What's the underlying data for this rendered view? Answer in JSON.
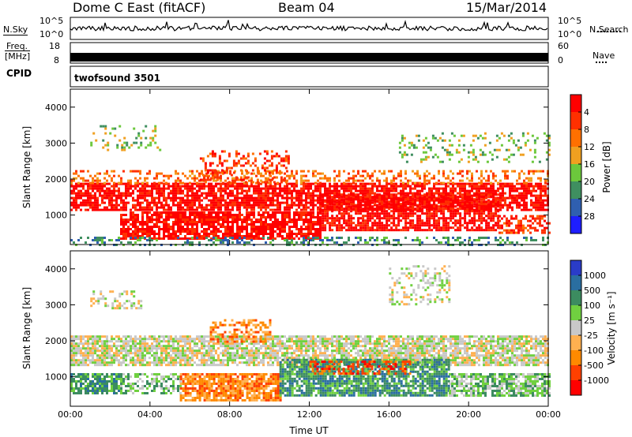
{
  "header": {
    "station": "Dome C East (fitACF)",
    "beam": "Beam 04",
    "date": "15/Mar/2014"
  },
  "strips": {
    "nsky_label": "N.Sky",
    "nsearch_label": "N.Search",
    "noise_ticks": [
      "10^5",
      "10^0"
    ],
    "freq_label_line1": "Freq.",
    "freq_label_line2": "[MHz]",
    "freq_ticks": [
      "18",
      "8"
    ],
    "nave_label": "Nave",
    "nave_ticks": [
      "60",
      "0"
    ],
    "cpid_label": "CPID",
    "cpid_value": "twofsound 3501"
  },
  "colors": {
    "power": [
      "#1e1eff",
      "#2f5fb0",
      "#3f8f60",
      "#6cc83c",
      "#f0a020",
      "#ff7000",
      "#ff3000",
      "#ff0000"
    ],
    "velocity": [
      "#ff0000",
      "#ff4000",
      "#ff8a00",
      "#ffb050",
      "#c8c8c8",
      "#70d040",
      "#3c8c60",
      "#2a6ea0",
      "#2a3cc8"
    ]
  },
  "chart_data": [
    {
      "type": "heatmap",
      "panel": "power",
      "ylabel": "Slant Range [km]",
      "yticks": [
        1000,
        2000,
        3000,
        4000
      ],
      "xticks": [
        "00:00",
        "04:00",
        "08:00",
        "12:00",
        "16:00",
        "20:00",
        "00:00"
      ],
      "ylim": [
        180,
        4500
      ],
      "colorbar": {
        "label": "Power [dB]",
        "ticks": [
          "4",
          "8",
          "12",
          "16",
          "20",
          "24",
          "28"
        ]
      },
      "bands": [
        {
          "t0": 0.0,
          "t1": 24.0,
          "r0": 1150,
          "r1": 1900,
          "level": 7,
          "density": 0.75
        },
        {
          "t0": 0.0,
          "t1": 24.0,
          "r0": 1900,
          "r1": 2250,
          "level": 5,
          "density": 0.35
        },
        {
          "t0": 2.5,
          "t1": 12.5,
          "r0": 350,
          "r1": 1100,
          "level": 7,
          "density": 0.8
        },
        {
          "t0": 12.5,
          "t1": 21.5,
          "r0": 600,
          "r1": 1600,
          "level": 7,
          "density": 0.75
        },
        {
          "t0": 21.5,
          "t1": 24.0,
          "r0": 500,
          "r1": 1000,
          "level": 6,
          "density": 0.6
        },
        {
          "t0": 6.5,
          "t1": 11.0,
          "r0": 1900,
          "r1": 2800,
          "level": 6,
          "density": 0.35
        },
        {
          "t0": 1.0,
          "t1": 4.5,
          "r0": 2800,
          "r1": 3500,
          "level": 3,
          "density": 0.22
        },
        {
          "t0": 16.5,
          "t1": 24.0,
          "r0": 2500,
          "r1": 3300,
          "level": 3,
          "density": 0.18
        },
        {
          "t0": 0.0,
          "t1": 24.0,
          "r0": 200,
          "r1": 400,
          "level": 2,
          "density": 0.3
        }
      ]
    },
    {
      "type": "heatmap",
      "panel": "velocity",
      "ylabel": "Slant Range [km]",
      "yticks": [
        1000,
        2000,
        3000,
        4000
      ],
      "xticks": [
        "00:00",
        "04:00",
        "08:00",
        "12:00",
        "16:00",
        "20:00",
        "00:00"
      ],
      "xlabel": "Time UT",
      "ylim": [
        180,
        4500
      ],
      "colorbar": {
        "label": "Velocity [m s⁻¹]",
        "ticks": [
          "1000",
          "500",
          "100",
          "25",
          "-25",
          "-100",
          "-500",
          "-1000"
        ]
      },
      "bands": [
        {
          "t0": 0.0,
          "t1": 24.0,
          "r0": 1350,
          "r1": 2150,
          "level": 4,
          "density": 0.8
        },
        {
          "t0": 0.0,
          "t1": 2.5,
          "r0": 550,
          "r1": 1100,
          "level": 6,
          "density": 0.8
        },
        {
          "t0": 2.5,
          "t1": 5.5,
          "r0": 550,
          "r1": 1100,
          "level": 5,
          "density": 0.6
        },
        {
          "t0": 5.5,
          "t1": 10.5,
          "r0": 350,
          "r1": 1100,
          "level": 2,
          "density": 0.85
        },
        {
          "t0": 10.5,
          "t1": 19.0,
          "r0": 450,
          "r1": 1500,
          "level": 6,
          "density": 0.8
        },
        {
          "t0": 19.0,
          "t1": 24.0,
          "r0": 500,
          "r1": 1100,
          "level": 5,
          "density": 0.75
        },
        {
          "t0": 7.0,
          "t1": 10.0,
          "r0": 2000,
          "r1": 2600,
          "level": 2,
          "density": 0.5
        },
        {
          "t0": 1.0,
          "t1": 3.5,
          "r0": 2900,
          "r1": 3400,
          "level": 4,
          "density": 0.35
        },
        {
          "t0": 16.0,
          "t1": 19.0,
          "r0": 3000,
          "r1": 4100,
          "level": 4,
          "density": 0.3
        },
        {
          "t0": 12.0,
          "t1": 17.0,
          "r0": 1100,
          "r1": 1450,
          "level": 1,
          "density": 0.45
        }
      ]
    }
  ]
}
